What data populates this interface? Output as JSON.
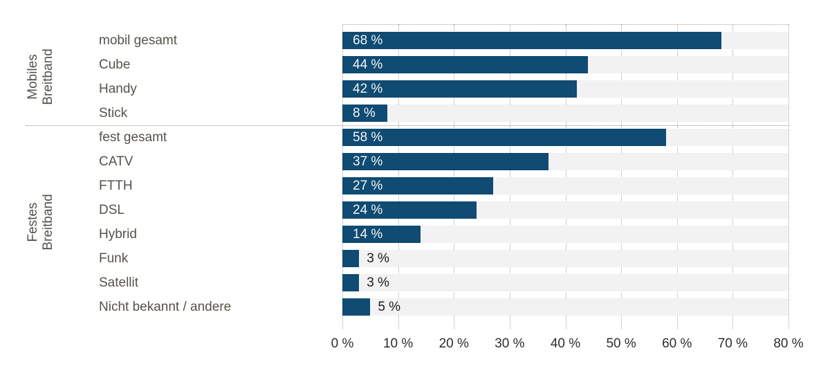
{
  "chart_data": {
    "type": "bar",
    "orientation": "horizontal",
    "unit": "%",
    "xlim": [
      0,
      80
    ],
    "x_ticks": [
      "0 %",
      "10 %",
      "20 %",
      "30 %",
      "40 %",
      "50 %",
      "60 %",
      "70 %",
      "80 %"
    ],
    "grid": "dotted-vertical",
    "legend": "none",
    "bar_color": "#0f4b72",
    "row_background": "#f2f2f2",
    "groups": [
      {
        "label": "Mobiles Breitband",
        "items": [
          {
            "label": "mobil gesamt",
            "value": 68,
            "value_label": "68 %",
            "value_label_position": "inside"
          },
          {
            "label": "Cube",
            "value": 44,
            "value_label": "44 %",
            "value_label_position": "inside"
          },
          {
            "label": "Handy",
            "value": 42,
            "value_label": "42 %",
            "value_label_position": "inside"
          },
          {
            "label": "Stick",
            "value": 8,
            "value_label": "8 %",
            "value_label_position": "inside"
          }
        ]
      },
      {
        "label": "Festes Breitband",
        "items": [
          {
            "label": "fest gesamt",
            "value": 58,
            "value_label": "58 %",
            "value_label_position": "inside"
          },
          {
            "label": "CATV",
            "value": 37,
            "value_label": "37 %",
            "value_label_position": "inside"
          },
          {
            "label": "FTTH",
            "value": 27,
            "value_label": "27 %",
            "value_label_position": "inside"
          },
          {
            "label": "DSL",
            "value": 24,
            "value_label": "24 %",
            "value_label_position": "inside"
          },
          {
            "label": "Hybrid",
            "value": 14,
            "value_label": "14 %",
            "value_label_position": "inside"
          },
          {
            "label": "Funk",
            "value": 3,
            "value_label": "3 %",
            "value_label_position": "outside"
          },
          {
            "label": "Satellit",
            "value": 3,
            "value_label": "3 %",
            "value_label_position": "outside"
          },
          {
            "label": "Nicht bekannt / andere",
            "value": 5,
            "value_label": "5 %",
            "value_label_position": "outside"
          }
        ]
      }
    ]
  }
}
